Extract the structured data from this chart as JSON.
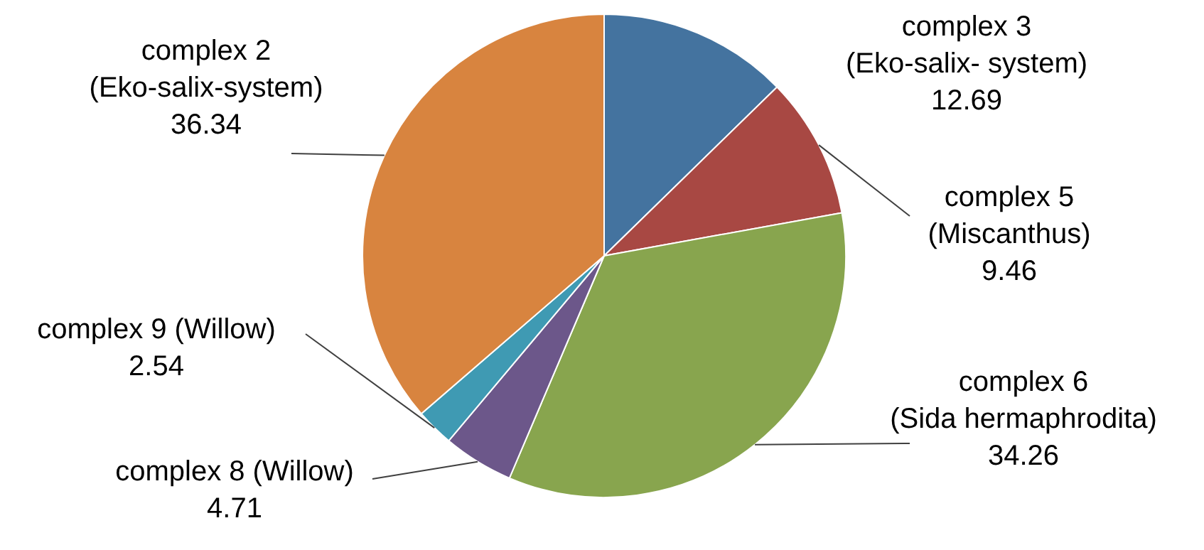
{
  "chart_data": {
    "type": "pie",
    "categories": [
      "complex 3\n(Eko-salix- system)",
      "complex 5\n(Miscanthus)",
      "complex 6\n(Sida hermaphrodita)",
      "complex 8 (Willow)",
      "complex 9 (Willow)",
      "complex 2\n(Eko-salix-system)"
    ],
    "values": [
      12.69,
      9.46,
      34.26,
      4.71,
      2.54,
      36.34
    ],
    "colors": [
      "#44739f",
      "#a84843",
      "#88a54e",
      "#6c578a",
      "#3f9ab3",
      "#d8843f"
    ],
    "data_labels": true
  }
}
